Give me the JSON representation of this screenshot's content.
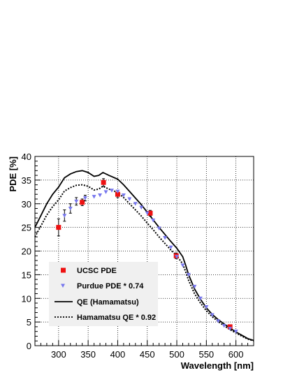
{
  "chart_data": {
    "type": "line",
    "xlabel": "Wavelength [nm]",
    "ylabel": "PDE [%]",
    "xlim": [
      260,
      630
    ],
    "ylim": [
      0,
      40
    ],
    "x_ticks": [
      300,
      350,
      400,
      450,
      500,
      550,
      600
    ],
    "y_ticks": [
      0,
      5,
      10,
      15,
      20,
      25,
      30,
      35,
      40
    ],
    "grid": true,
    "legend_position": "lower-left",
    "series": [
      {
        "name": "UCSC PDE",
        "kind": "points",
        "marker": "square",
        "color": "#ee1111",
        "points": [
          {
            "x": 300,
            "y": 25.0,
            "err": 1.8
          },
          {
            "x": 340,
            "y": 30.3,
            "err": 0.7
          },
          {
            "x": 376,
            "y": 34.5,
            "err": 0.8
          },
          {
            "x": 400,
            "y": 32.0,
            "err": 0.7
          },
          {
            "x": 455,
            "y": 28.0,
            "err": 0.6
          },
          {
            "x": 499,
            "y": 19.0,
            "err": 0.6
          },
          {
            "x": 590,
            "y": 4.0,
            "err": 0.3
          }
        ]
      },
      {
        "name": "Purdue PDE * 0.74",
        "kind": "points",
        "marker": "triangle-down",
        "color": "#7777ee",
        "points": [
          {
            "x": 310,
            "y": 27.5,
            "err": 1.2
          },
          {
            "x": 320,
            "y": 29.0,
            "err": 1.0
          },
          {
            "x": 330,
            "y": 30.5,
            "err": 0.8
          },
          {
            "x": 345,
            "y": 31.2,
            "err": 0.6
          },
          {
            "x": 360,
            "y": 31.5
          },
          {
            "x": 370,
            "y": 31.8
          },
          {
            "x": 380,
            "y": 32.5
          },
          {
            "x": 390,
            "y": 32.8
          },
          {
            "x": 400,
            "y": 32.6
          },
          {
            "x": 410,
            "y": 31.8
          },
          {
            "x": 420,
            "y": 31.0
          },
          {
            "x": 430,
            "y": 30.0
          },
          {
            "x": 440,
            "y": 29.2
          },
          {
            "x": 450,
            "y": 28.0
          },
          {
            "x": 460,
            "y": 26.5
          },
          {
            "x": 470,
            "y": 24.8
          },
          {
            "x": 480,
            "y": 22.8
          },
          {
            "x": 490,
            "y": 20.8
          },
          {
            "x": 500,
            "y": 18.8
          },
          {
            "x": 510,
            "y": 17.0
          },
          {
            "x": 520,
            "y": 15.0
          },
          {
            "x": 530,
            "y": 12.5
          },
          {
            "x": 540,
            "y": 10.0
          },
          {
            "x": 550,
            "y": 8.2
          },
          {
            "x": 560,
            "y": 6.5
          },
          {
            "x": 570,
            "y": 5.2
          },
          {
            "x": 580,
            "y": 4.2
          },
          {
            "x": 590,
            "y": 3.6
          },
          {
            "x": 600,
            "y": 3.0
          }
        ]
      },
      {
        "name": "QE (Hamamatsu)",
        "kind": "line",
        "style": "solid",
        "color": "#000000",
        "x": [
          260,
          270,
          280,
          290,
          300,
          310,
          320,
          330,
          340,
          350,
          360,
          368,
          375,
          385,
          400,
          410,
          420,
          430,
          440,
          450,
          460,
          470,
          480,
          490,
          500,
          510,
          515,
          520,
          530,
          540,
          550,
          560,
          570,
          580,
          590,
          600,
          610,
          620,
          630
        ],
        "y": [
          25.0,
          27.5,
          30.0,
          32.0,
          33.5,
          35.5,
          36.3,
          36.8,
          37.0,
          36.6,
          35.8,
          36.0,
          36.6,
          36.0,
          35.2,
          34.0,
          32.6,
          31.2,
          29.8,
          28.2,
          26.6,
          25.0,
          23.5,
          22.0,
          20.6,
          18.8,
          17.0,
          15.0,
          12.0,
          9.8,
          8.0,
          6.6,
          5.5,
          4.6,
          3.7,
          2.9,
          2.2,
          1.5,
          1.1
        ]
      },
      {
        "name": "Hamamatsu QE * 0.92",
        "kind": "line",
        "style": "dotted",
        "color": "#000000",
        "x": [
          260,
          270,
          280,
          290,
          300,
          310,
          320,
          330,
          340,
          350,
          360,
          368,
          375,
          385,
          400,
          410,
          420,
          430,
          440,
          450,
          460,
          470,
          480,
          490,
          500,
          510,
          515,
          520,
          530,
          540,
          550,
          560,
          570,
          580,
          590,
          600,
          610,
          620,
          630
        ],
        "y": [
          23.0,
          25.3,
          27.6,
          29.4,
          30.8,
          32.7,
          33.4,
          33.9,
          34.0,
          33.7,
          32.9,
          33.1,
          33.7,
          33.1,
          32.4,
          31.3,
          30.0,
          28.7,
          27.4,
          25.9,
          24.5,
          23.0,
          21.6,
          20.2,
          19.0,
          17.3,
          15.6,
          13.8,
          11.0,
          9.0,
          7.4,
          6.1,
          5.1,
          4.2,
          3.4,
          2.7,
          2.0,
          1.4,
          1.0
        ]
      }
    ]
  }
}
